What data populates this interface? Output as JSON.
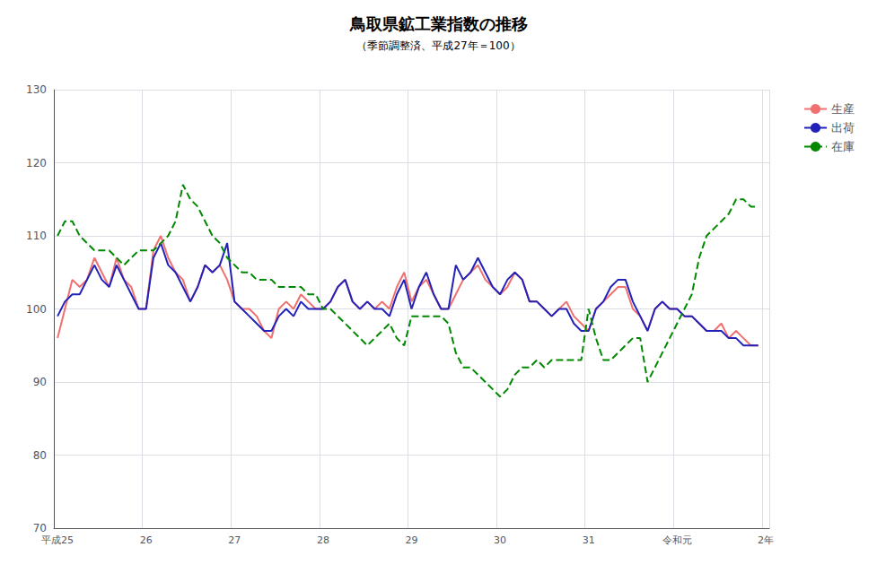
{
  "chart_data": {
    "type": "line",
    "title": "鳥取県鉱工業指数の推移",
    "subtitle": "（季節調整済、平成27年＝100）",
    "categories": [
      "平成25",
      null,
      null,
      null,
      null,
      null,
      null,
      null,
      null,
      null,
      null,
      null,
      "26",
      null,
      null,
      null,
      null,
      null,
      null,
      null,
      null,
      null,
      null,
      null,
      "27",
      null,
      null,
      null,
      null,
      null,
      null,
      null,
      null,
      null,
      null,
      null,
      "28",
      null,
      null,
      null,
      null,
      null,
      null,
      null,
      null,
      null,
      null,
      null,
      "29",
      null,
      null,
      null,
      null,
      null,
      null,
      null,
      null,
      null,
      null,
      null,
      "30",
      null,
      null,
      null,
      null,
      null,
      null,
      null,
      null,
      null,
      null,
      null,
      "31",
      null,
      null,
      null,
      null,
      null,
      null,
      null,
      null,
      null,
      null,
      null,
      "令和元",
      null,
      null,
      null,
      null,
      null,
      null,
      null,
      null,
      null,
      null,
      null,
      "2年"
    ],
    "ylim": [
      70,
      130
    ],
    "yticks": [
      70,
      80,
      90,
      100,
      110,
      120,
      130
    ],
    "grid": true,
    "legend": "upper right",
    "series": [
      {
        "name": "生産",
        "color": "#f07070",
        "line_style": "solid",
        "values": [
          96,
          100,
          104,
          103,
          104,
          107,
          105,
          103,
          107,
          104,
          103,
          100,
          100,
          108,
          110,
          107,
          105,
          104,
          101,
          103,
          106,
          105,
          106,
          104,
          101,
          100,
          100,
          99,
          97,
          96,
          100,
          101,
          100,
          102,
          101,
          100,
          100,
          101,
          103,
          104,
          101,
          100,
          101,
          100,
          101,
          100,
          103,
          105,
          101,
          103,
          104,
          102,
          100,
          100,
          102,
          104,
          105,
          106,
          104,
          103,
          102,
          103,
          105,
          104,
          101,
          101,
          100,
          99,
          100,
          101,
          99,
          98,
          97,
          100,
          101,
          102,
          103,
          103,
          100,
          99,
          97,
          100,
          101,
          100,
          100,
          99,
          99,
          98,
          97,
          97,
          98,
          96,
          97,
          96,
          95,
          95,
          null
        ]
      },
      {
        "name": "出荷",
        "color": "#2222bb",
        "line_style": "solid",
        "values": [
          99,
          101,
          102,
          102,
          104,
          106,
          104,
          103,
          106,
          104,
          102,
          100,
          100,
          107,
          109,
          106,
          105,
          103,
          101,
          103,
          106,
          105,
          106,
          109,
          101,
          100,
          99,
          98,
          97,
          97,
          99,
          100,
          99,
          101,
          100,
          100,
          100,
          101,
          103,
          104,
          101,
          100,
          101,
          100,
          100,
          99,
          102,
          104,
          100,
          103,
          105,
          102,
          100,
          100,
          106,
          104,
          105,
          107,
          105,
          103,
          102,
          104,
          105,
          104,
          101,
          101,
          100,
          99,
          100,
          100,
          98,
          97,
          97,
          100,
          101,
          103,
          104,
          104,
          101,
          99,
          97,
          100,
          101,
          100,
          100,
          99,
          99,
          98,
          97,
          97,
          97,
          96,
          96,
          95,
          95,
          95,
          null
        ]
      },
      {
        "name": "在庫",
        "color": "#008800",
        "line_style": "dashed",
        "values": [
          110,
          112,
          112,
          110,
          109,
          108,
          108,
          108,
          107,
          106,
          107,
          108,
          108,
          108,
          109,
          110,
          112,
          117,
          115,
          114,
          112,
          110,
          109,
          107,
          106,
          105,
          105,
          104,
          104,
          104,
          103,
          103,
          103,
          103,
          102,
          102,
          100,
          100,
          99,
          98,
          97,
          96,
          95,
          96,
          97,
          98,
          96,
          95,
          99,
          99,
          99,
          99,
          99,
          98,
          94,
          92,
          92,
          91,
          90,
          89,
          88,
          89,
          91,
          92,
          92,
          93,
          92,
          93,
          93,
          93,
          93,
          93,
          100,
          96,
          93,
          93,
          94,
          95,
          96,
          96,
          90,
          92,
          94,
          96,
          98,
          100,
          102,
          107,
          110,
          111,
          112,
          113,
          115,
          115,
          114,
          114,
          null
        ]
      }
    ]
  }
}
